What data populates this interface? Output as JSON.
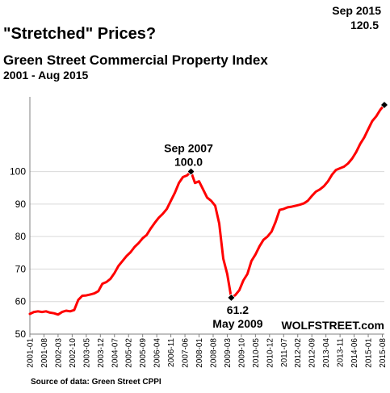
{
  "colors": {
    "line": "#ff0000",
    "grid": "#d9d9d9",
    "axis": "#808080",
    "marker": "#000000"
  },
  "chart_data": {
    "type": "line",
    "title": "\"Stretched\" Prices?",
    "subtitle": "Green Street Commercial Property Index",
    "date_range": "2001 - Aug 2015",
    "source": "Source of data: Green Street CPPI",
    "watermark": "WOLFSTREET.com",
    "xlabel": "",
    "ylabel": "",
    "ylim": [
      50,
      120
    ],
    "xlim": [
      "2001-01",
      "2015-09"
    ],
    "grid": true,
    "yticks": [
      50,
      60,
      70,
      80,
      90,
      100
    ],
    "xticks": [
      "2001-01",
      "2001-08",
      "2002-03",
      "2002-10",
      "2003-05",
      "2003-12",
      "2004-07",
      "2005-02",
      "2005-09",
      "2006-04",
      "2006-11",
      "2007-06",
      "2008-01",
      "2008-08",
      "2009-03",
      "2009-10",
      "2010-05",
      "2010-12",
      "2011-07",
      "2012-02",
      "2012-09",
      "2013-04",
      "2013-11",
      "2014-06",
      "2015-01",
      "2015-08"
    ],
    "series": [
      {
        "name": "",
        "points": [
          [
            "2001-01",
            56.2
          ],
          [
            "2001-03",
            56.8
          ],
          [
            "2001-05",
            57.0
          ],
          [
            "2001-07",
            56.8
          ],
          [
            "2001-09",
            57.0
          ],
          [
            "2001-11",
            56.6
          ],
          [
            "2002-01",
            56.4
          ],
          [
            "2002-03",
            56.0
          ],
          [
            "2002-05",
            56.8
          ],
          [
            "2002-07",
            57.2
          ],
          [
            "2002-09",
            57.0
          ],
          [
            "2002-11",
            57.4
          ],
          [
            "2003-01",
            60.5
          ],
          [
            "2003-03",
            61.8
          ],
          [
            "2003-05",
            61.9
          ],
          [
            "2003-07",
            62.2
          ],
          [
            "2003-09",
            62.5
          ],
          [
            "2003-11",
            63.2
          ],
          [
            "2004-01",
            65.5
          ],
          [
            "2004-03",
            66.0
          ],
          [
            "2004-05",
            67.0
          ],
          [
            "2004-07",
            68.8
          ],
          [
            "2004-09",
            71.0
          ],
          [
            "2004-11",
            72.5
          ],
          [
            "2005-01",
            74.0
          ],
          [
            "2005-03",
            75.2
          ],
          [
            "2005-05",
            76.8
          ],
          [
            "2005-07",
            78.0
          ],
          [
            "2005-09",
            79.5
          ],
          [
            "2005-11",
            80.5
          ],
          [
            "2006-01",
            82.5
          ],
          [
            "2006-03",
            84.2
          ],
          [
            "2006-05",
            85.8
          ],
          [
            "2006-07",
            87.0
          ],
          [
            "2006-09",
            88.5
          ],
          [
            "2006-11",
            91.0
          ],
          [
            "2007-01",
            93.5
          ],
          [
            "2007-03",
            96.5
          ],
          [
            "2007-05",
            98.3
          ],
          [
            "2007-07",
            98.8
          ],
          [
            "2007-09",
            100.0
          ],
          [
            "2007-11",
            96.5
          ],
          [
            "2008-01",
            97.0
          ],
          [
            "2008-03",
            94.5
          ],
          [
            "2008-05",
            92.0
          ],
          [
            "2008-07",
            91.0
          ],
          [
            "2008-09",
            89.5
          ],
          [
            "2008-11",
            84.0
          ],
          [
            "2009-01",
            73.2
          ],
          [
            "2009-03",
            68.5
          ],
          [
            "2009-05",
            61.2
          ],
          [
            "2009-07",
            62.0
          ],
          [
            "2009-09",
            63.5
          ],
          [
            "2009-11",
            66.5
          ],
          [
            "2010-01",
            68.5
          ],
          [
            "2010-03",
            72.5
          ],
          [
            "2010-05",
            74.5
          ],
          [
            "2010-07",
            77.0
          ],
          [
            "2010-09",
            79.0
          ],
          [
            "2010-11",
            80.0
          ],
          [
            "2011-01",
            81.5
          ],
          [
            "2011-03",
            84.5
          ],
          [
            "2011-05",
            88.2
          ],
          [
            "2011-07",
            88.5
          ],
          [
            "2011-09",
            89.0
          ],
          [
            "2011-11",
            89.2
          ],
          [
            "2012-01",
            89.5
          ],
          [
            "2012-03",
            89.8
          ],
          [
            "2012-05",
            90.2
          ],
          [
            "2012-07",
            91.0
          ],
          [
            "2012-09",
            92.5
          ],
          [
            "2012-11",
            93.8
          ],
          [
            "2013-01",
            94.5
          ],
          [
            "2013-03",
            95.5
          ],
          [
            "2013-05",
            97.0
          ],
          [
            "2013-07",
            99.0
          ],
          [
            "2013-09",
            100.5
          ],
          [
            "2013-11",
            101.0
          ],
          [
            "2014-01",
            101.5
          ],
          [
            "2014-03",
            102.5
          ],
          [
            "2014-05",
            104.0
          ],
          [
            "2014-07",
            106.0
          ],
          [
            "2014-09",
            108.5
          ],
          [
            "2014-11",
            110.5
          ],
          [
            "2015-01",
            113.0
          ],
          [
            "2015-03",
            115.5
          ],
          [
            "2015-05",
            117.0
          ],
          [
            "2015-07",
            119.0
          ],
          [
            "2015-09",
            120.5
          ]
        ]
      }
    ],
    "annotations": [
      {
        "date": "Sep 2007",
        "value": "100.0",
        "at": "2007-09",
        "y": 100.0,
        "placement": "above"
      },
      {
        "date": "May 2009",
        "value": "61.2",
        "at": "2009-05",
        "y": 61.2,
        "placement": "below"
      },
      {
        "date": "Sep 2015",
        "value": "120.5",
        "at": "2015-09",
        "y": 120.5,
        "placement": "above-left"
      }
    ]
  }
}
